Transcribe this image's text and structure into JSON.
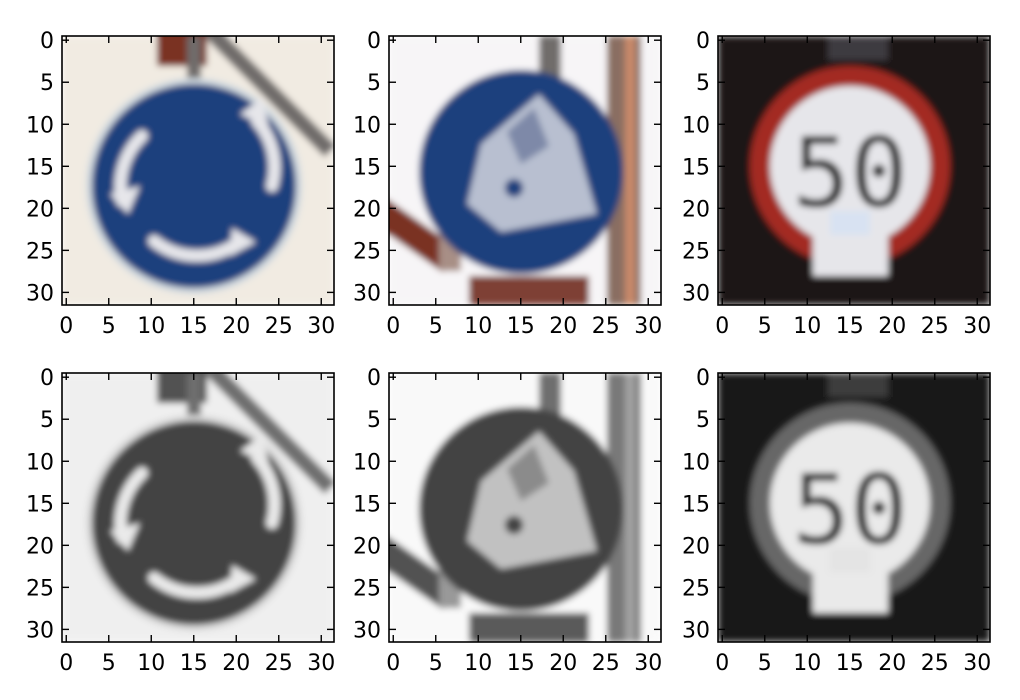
{
  "figure": {
    "grid": false,
    "layout": "2 rows x 3 columns of image subplots",
    "colors": {
      "sign_blue": "#1d3f7d",
      "sign_red": "#a32a22",
      "sign_white": "#e6e6ea",
      "background_cream": "#f1ebe2",
      "background_dark": "#1a1714",
      "sky_white": "#f7f5f7",
      "pole_gray": "#6f6c6b",
      "rust_red": "#7a3324"
    }
  },
  "chart_data": [
    {
      "type": "image",
      "row": 1,
      "col": 1,
      "content": "roundabout-sign",
      "color_mode": "rgb",
      "xlim": [
        0,
        31
      ],
      "ylim": [
        31,
        0
      ],
      "xticks": [
        0,
        5,
        10,
        15,
        20,
        25,
        30
      ],
      "yticks": [
        0,
        5,
        10,
        15,
        20,
        25,
        30
      ],
      "xtick_labels": [
        "0",
        "5",
        "10",
        "15",
        "20",
        "25",
        "30"
      ],
      "ytick_labels": [
        "0",
        "5",
        "10",
        "15",
        "20",
        "25",
        "30"
      ]
    },
    {
      "type": "image",
      "row": 1,
      "col": 2,
      "content": "children-crossing-blue-sign",
      "color_mode": "rgb",
      "xlim": [
        0,
        31
      ],
      "ylim": [
        31,
        0
      ],
      "xticks": [
        0,
        5,
        10,
        15,
        20,
        25,
        30
      ],
      "yticks": [
        0,
        5,
        10,
        15,
        20,
        25,
        30
      ],
      "xtick_labels": [
        "0",
        "5",
        "10",
        "15",
        "20",
        "25",
        "30"
      ],
      "ytick_labels": [
        "0",
        "5",
        "10",
        "15",
        "20",
        "25",
        "30"
      ]
    },
    {
      "type": "image",
      "row": 1,
      "col": 3,
      "content": "speed-limit-sign",
      "sign_text": "50",
      "color_mode": "rgb",
      "xlim": [
        0,
        31
      ],
      "ylim": [
        31,
        0
      ],
      "xticks": [
        0,
        5,
        10,
        15,
        20,
        25,
        30
      ],
      "yticks": [
        0,
        5,
        10,
        15,
        20,
        25,
        30
      ],
      "xtick_labels": [
        "0",
        "5",
        "10",
        "15",
        "20",
        "25",
        "30"
      ],
      "ytick_labels": [
        "0",
        "5",
        "10",
        "15",
        "20",
        "25",
        "30"
      ]
    },
    {
      "type": "image",
      "row": 2,
      "col": 1,
      "content": "roundabout-sign",
      "color_mode": "grayscale",
      "xlim": [
        0,
        31
      ],
      "ylim": [
        31,
        0
      ],
      "xticks": [
        0,
        5,
        10,
        15,
        20,
        25,
        30
      ],
      "yticks": [
        0,
        5,
        10,
        15,
        20,
        25,
        30
      ],
      "xtick_labels": [
        "0",
        "5",
        "10",
        "15",
        "20",
        "25",
        "30"
      ],
      "ytick_labels": [
        "0",
        "5",
        "10",
        "15",
        "20",
        "25",
        "30"
      ]
    },
    {
      "type": "image",
      "row": 2,
      "col": 2,
      "content": "children-crossing-blue-sign",
      "color_mode": "grayscale",
      "xlim": [
        0,
        31
      ],
      "ylim": [
        31,
        0
      ],
      "xticks": [
        0,
        5,
        10,
        15,
        20,
        25,
        30
      ],
      "yticks": [
        0,
        5,
        10,
        15,
        20,
        25,
        30
      ],
      "xtick_labels": [
        "0",
        "5",
        "10",
        "15",
        "20",
        "25",
        "30"
      ],
      "ytick_labels": [
        "0",
        "5",
        "10",
        "15",
        "20",
        "25",
        "30"
      ]
    },
    {
      "type": "image",
      "row": 2,
      "col": 3,
      "content": "speed-limit-sign",
      "sign_text": "50",
      "color_mode": "grayscale",
      "xlim": [
        0,
        31
      ],
      "ylim": [
        31,
        0
      ],
      "xticks": [
        0,
        5,
        10,
        15,
        20,
        25,
        30
      ],
      "yticks": [
        0,
        5,
        10,
        15,
        20,
        25,
        30
      ],
      "xtick_labels": [
        "0",
        "5",
        "10",
        "15",
        "20",
        "25",
        "30"
      ],
      "ytick_labels": [
        "0",
        "5",
        "10",
        "15",
        "20",
        "25",
        "30"
      ]
    }
  ]
}
